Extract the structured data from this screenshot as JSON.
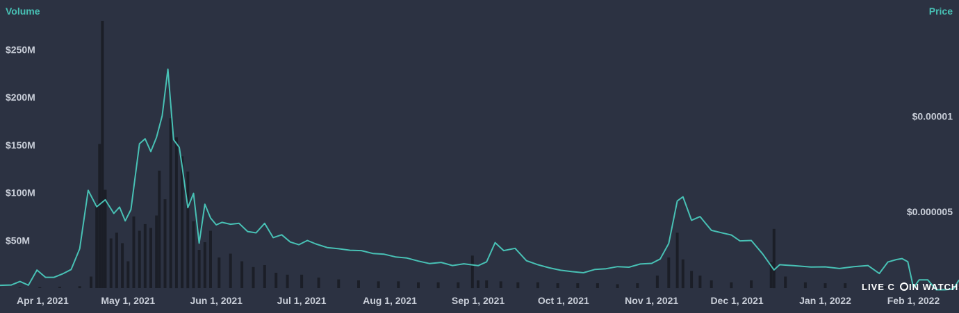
{
  "chart_data": {
    "type": "line",
    "subtype": "price line with volume bars",
    "colors": {
      "background": "#2c3242",
      "price_line": "#48c1b5",
      "volume_bars": "#1b1e27",
      "axis_title": "#48c1b5",
      "tick_text": "#c9ced8"
    },
    "left_axis": {
      "title": "Volume",
      "ticks": [
        "$50M",
        "$100M",
        "$150M",
        "$200M",
        "$250M"
      ],
      "tick_values": [
        50,
        100,
        150,
        200,
        250
      ],
      "unit": "$M",
      "range": [
        0,
        300
      ]
    },
    "right_axis": {
      "title": "Price",
      "ticks": [
        "$0.000005",
        "$0.00001"
      ],
      "tick_values": [
        5e-06,
        1e-05
      ],
      "range": [
        1e-06,
        1.28e-05
      ]
    },
    "x_axis": {
      "ticks": [
        "Apr 1, 2021",
        "May 1, 2021",
        "Jun 1, 2021",
        "Jul 1, 2021",
        "Aug 1, 2021",
        "Sep 1, 2021",
        "Oct 1, 2021",
        "Nov 1, 2021",
        "Dec 1, 2021",
        "Jan 1, 2022",
        "Feb 1, 2022"
      ],
      "tick_dates": [
        "2021-04-01",
        "2021-05-01",
        "2021-06-01",
        "2021-07-01",
        "2021-08-01",
        "2021-09-01",
        "2021-10-01",
        "2021-11-01",
        "2021-12-01",
        "2022-01-01",
        "2022-02-01"
      ],
      "range": [
        "2021-03-17",
        "2022-02-17"
      ]
    },
    "series": [
      {
        "name": "Price",
        "axis": "right",
        "x": [
          "2021-03-17",
          "2021-03-21",
          "2021-03-24",
          "2021-03-27",
          "2021-03-30",
          "2021-04-02",
          "2021-04-05",
          "2021-04-08",
          "2021-04-11",
          "2021-04-14",
          "2021-04-17",
          "2021-04-20",
          "2021-04-23",
          "2021-04-26",
          "2021-04-28",
          "2021-04-30",
          "2021-05-02",
          "2021-05-05",
          "2021-05-07",
          "2021-05-09",
          "2021-05-11",
          "2021-05-13",
          "2021-05-15",
          "2021-05-17",
          "2021-05-19",
          "2021-05-20",
          "2021-05-22",
          "2021-05-24",
          "2021-05-26",
          "2021-05-28",
          "2021-05-30",
          "2021-06-01",
          "2021-06-03",
          "2021-06-06",
          "2021-06-09",
          "2021-06-12",
          "2021-06-15",
          "2021-06-18",
          "2021-06-21",
          "2021-06-24",
          "2021-06-27",
          "2021-06-30",
          "2021-07-03",
          "2021-07-06",
          "2021-07-10",
          "2021-07-14",
          "2021-07-18",
          "2021-07-22",
          "2021-07-26",
          "2021-07-30",
          "2021-08-03",
          "2021-08-07",
          "2021-08-11",
          "2021-08-15",
          "2021-08-19",
          "2021-08-23",
          "2021-08-27",
          "2021-09-01",
          "2021-09-04",
          "2021-09-07",
          "2021-09-10",
          "2021-09-14",
          "2021-09-18",
          "2021-09-22",
          "2021-09-26",
          "2021-09-30",
          "2021-10-04",
          "2021-10-08",
          "2021-10-12",
          "2021-10-16",
          "2021-10-20",
          "2021-10-24",
          "2021-10-28",
          "2021-11-01",
          "2021-11-04",
          "2021-11-07",
          "2021-11-10",
          "2021-11-12",
          "2021-11-15",
          "2021-11-18",
          "2021-11-22",
          "2021-11-26",
          "2021-11-29",
          "2021-12-02",
          "2021-12-06",
          "2021-12-10",
          "2021-12-14",
          "2021-12-16",
          "2021-12-18",
          "2021-12-22",
          "2021-12-27",
          "2022-01-01",
          "2022-01-06",
          "2022-01-11",
          "2022-01-16",
          "2022-01-20",
          "2022-01-23",
          "2022-01-26",
          "2022-01-28",
          "2022-01-30",
          "2022-02-01",
          "2022-02-03",
          "2022-02-06",
          "2022-02-09",
          "2022-02-12",
          "2022-02-15",
          "2022-02-17"
        ],
        "values": [
          1.14e-06,
          1.16e-06,
          1.34e-06,
          1.15e-06,
          1.94e-06,
          1.56e-06,
          1.56e-06,
          1.74e-06,
          1.97e-06,
          3.06e-06,
          6.12e-06,
          5.26e-06,
          5.62e-06,
          4.91e-06,
          5.24e-06,
          4.52e-06,
          5.11e-06,
          8.56e-06,
          8.82e-06,
          8.15e-06,
          8.89e-06,
          1.003e-05,
          1.247e-05,
          8.77e-06,
          8.37e-06,
          7.37e-06,
          5.21e-06,
          5.96e-06,
          3.35e-06,
          5.39e-06,
          4.67e-06,
          4.31e-06,
          4.44e-06,
          4.34e-06,
          4.39e-06,
          3.96e-06,
          3.89e-06,
          4.39e-06,
          3.64e-06,
          3.79e-06,
          3.41e-06,
          3.27e-06,
          3.49e-06,
          3.31e-06,
          3.12e-06,
          3.06e-06,
          2.98e-06,
          2.96e-06,
          2.81e-06,
          2.77e-06,
          2.63e-06,
          2.57e-06,
          2.41e-06,
          2.28e-06,
          2.34e-06,
          2.18e-06,
          2.27e-06,
          2.17e-06,
          2.37e-06,
          3.38e-06,
          2.96e-06,
          3.08e-06,
          2.43e-06,
          2.22e-06,
          2.06e-06,
          1.93e-06,
          1.86e-06,
          1.8e-06,
          1.97e-06,
          2.01e-06,
          2.12e-06,
          2.09e-06,
          2.26e-06,
          2.29e-06,
          2.52e-06,
          3.33e-06,
          5.56e-06,
          5.78e-06,
          4.55e-06,
          4.74e-06,
          4.02e-06,
          3.88e-06,
          3.78e-06,
          3.47e-06,
          3.49e-06,
          2.79e-06,
          1.95e-06,
          2.22e-06,
          2.2e-06,
          2.16e-06,
          2.1e-06,
          2.11e-06,
          2.02e-06,
          2.12e-06,
          2.18e-06,
          1.76e-06,
          2.36e-06,
          2.49e-06,
          2.54e-06,
          2.38e-06,
          1.01e-06,
          1.43e-06,
          1.43e-06,
          9.1e-07,
          9.1e-07,
          9.4e-07,
          1.42e-06
        ]
      },
      {
        "name": "Volume",
        "axis": "left",
        "x": [
          "2021-03-17",
          "2021-03-24",
          "2021-03-31",
          "2021-04-07",
          "2021-04-14",
          "2021-04-18",
          "2021-04-20",
          "2021-04-21",
          "2021-04-22",
          "2021-04-23",
          "2021-04-25",
          "2021-04-27",
          "2021-04-29",
          "2021-05-01",
          "2021-05-03",
          "2021-05-05",
          "2021-05-07",
          "2021-05-09",
          "2021-05-11",
          "2021-05-12",
          "2021-05-14",
          "2021-05-16",
          "2021-05-18",
          "2021-05-20",
          "2021-05-22",
          "2021-05-24",
          "2021-05-26",
          "2021-05-28",
          "2021-05-30",
          "2021-06-02",
          "2021-06-06",
          "2021-06-10",
          "2021-06-14",
          "2021-06-18",
          "2021-06-22",
          "2021-06-26",
          "2021-07-01",
          "2021-07-07",
          "2021-07-14",
          "2021-07-21",
          "2021-07-28",
          "2021-08-04",
          "2021-08-11",
          "2021-08-18",
          "2021-08-25",
          "2021-08-30",
          "2021-09-01",
          "2021-09-04",
          "2021-09-09",
          "2021-09-15",
          "2021-09-22",
          "2021-09-29",
          "2021-10-06",
          "2021-10-13",
          "2021-10-20",
          "2021-10-27",
          "2021-11-03",
          "2021-11-07",
          "2021-11-10",
          "2021-11-12",
          "2021-11-15",
          "2021-11-18",
          "2021-11-22",
          "2021-11-29",
          "2021-12-06",
          "2021-12-13",
          "2021-12-14",
          "2021-12-18",
          "2021-12-25",
          "2022-01-01",
          "2022-01-08",
          "2022-01-15",
          "2022-01-22",
          "2022-01-29",
          "2022-02-05",
          "2022-02-12",
          "2022-02-17"
        ],
        "values": [
          0.3,
          0.5,
          0.8,
          1.2,
          2,
          12,
          88,
          151,
          280,
          103,
          52,
          58,
          47,
          28,
          75,
          60,
          67,
          63,
          76,
          123,
          93,
          178,
          158,
          138,
          122,
          70,
          40,
          48,
          60,
          32,
          36,
          28,
          22,
          24,
          16,
          14,
          14,
          11,
          9,
          8,
          7,
          7,
          6,
          6,
          6,
          34,
          8,
          8,
          7,
          6,
          6,
          5,
          5,
          5,
          4,
          5,
          13,
          32,
          58,
          30,
          18,
          13,
          8,
          6,
          8,
          27,
          62,
          12,
          6,
          5,
          5,
          3,
          2,
          2,
          2,
          1,
          1
        ]
      }
    ],
    "watermark": "LIVE COIN WATCH"
  }
}
